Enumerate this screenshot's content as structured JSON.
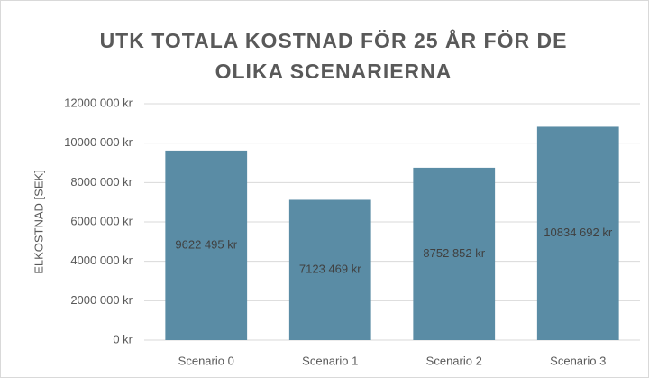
{
  "chart_data": {
    "type": "bar",
    "title": "UTK TOTALA KOSTNAD FÖR 25 ÅR FÖR DE OLIKA SCENARIERNA",
    "y_label": "ELKOSTNAD [SEK]",
    "categories": [
      "Scenario 0",
      "Scenario 1",
      "Scenario 2",
      "Scenario 3"
    ],
    "values": [
      9622495,
      7123469,
      8752852,
      10834692
    ],
    "value_labels": [
      "9622 495 kr",
      "7123 469 kr",
      "8752 852 kr",
      "10834 692 kr"
    ],
    "color": "#5a8ca5",
    "ylim": [
      0,
      12000000
    ],
    "yticks": [
      {
        "value": 0,
        "label": "0 kr"
      },
      {
        "value": 2000000,
        "label": "2000 000 kr"
      },
      {
        "value": 4000000,
        "label": "4000 000 kr"
      },
      {
        "value": 6000000,
        "label": "6000 000 kr"
      },
      {
        "value": 8000000,
        "label": "8000 000 kr"
      },
      {
        "value": 10000000,
        "label": "10000 000 kr"
      },
      {
        "value": 12000000,
        "label": "12000 000 kr"
      }
    ],
    "grid": true
  }
}
